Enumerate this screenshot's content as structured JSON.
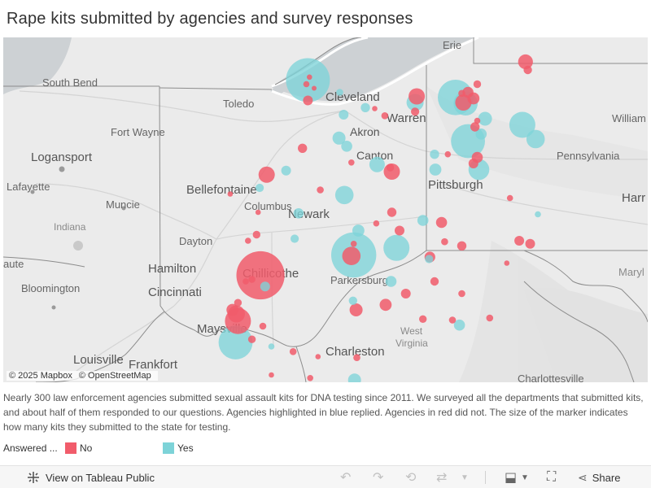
{
  "title": "Rape kits submitted by agencies and survey responses",
  "map": {
    "labels": {
      "erie": "Erie",
      "south_bend": "South Bend",
      "toledo": "Toledo",
      "cleveland": "Cleveland",
      "akron": "Akron",
      "canton": "Canton",
      "warren": "Warren",
      "williamsport": "William",
      "fort_wayne": "Fort Wayne",
      "logansport": "Logansport",
      "lafayette": "Lafayette",
      "muncie": "Muncie",
      "bellefontaine": "Bellefontaine",
      "columbus": "Columbus",
      "newark": "Newark",
      "pennsylvania": "Pennsylvania",
      "pittsburgh": "Pittsburgh",
      "harrisburg": "Harr",
      "indiana": "Indiana",
      "dayton": "Dayton",
      "kokomo": "aute",
      "hamilton": "Hamilton",
      "chillicothe": "Chillicothe",
      "parkersburg": "Parkersburg",
      "bloomington": "Bloomington",
      "cincinnati": "Cincinnati",
      "maryland": "Maryl",
      "maysville": "Maysville",
      "west_virginia_1": "West",
      "west_virginia_2": "Virginia",
      "louisville": "Louisville",
      "frankfort": "Frankfort",
      "charleston": "Charleston",
      "charlottesville": "Charlottesville"
    },
    "attribution": {
      "mapbox": "© 2025 Mapbox",
      "osm": "© OpenStreetMap"
    },
    "markers": [
      {
        "answered": "Yes",
        "lat": 41.68,
        "lon": -83.58,
        "kits": 400
      },
      {
        "answered": "No",
        "lat": 41.71,
        "lon": -83.56,
        "kits": 6
      },
      {
        "answered": "No",
        "lat": 41.64,
        "lon": -83.6,
        "kits": 8
      },
      {
        "answered": "No",
        "lat": 41.6,
        "lon": -83.5,
        "kits": 5
      },
      {
        "answered": "Yes",
        "lat": 41.56,
        "lon": -83.17,
        "kits": 10
      },
      {
        "answered": "No",
        "lat": 41.48,
        "lon": -83.58,
        "kits": 20
      },
      {
        "answered": "Yes",
        "lat": 41.41,
        "lon": -82.84,
        "kits": 18
      },
      {
        "answered": "No",
        "lat": 41.33,
        "lon": -82.59,
        "kits": 10
      },
      {
        "answered": "Yes",
        "lat": 41.46,
        "lon": -82.2,
        "kits": 60
      },
      {
        "answered": "No",
        "lat": 41.52,
        "lon": -82.18,
        "kits": 55
      },
      {
        "answered": "No",
        "lat": 41.37,
        "lon": -82.2,
        "kits": 14
      },
      {
        "answered": "Yes",
        "lat": 41.51,
        "lon": -81.68,
        "kits": 260
      },
      {
        "answered": "Yes",
        "lat": 41.45,
        "lon": -81.55,
        "kits": 120
      },
      {
        "answered": "No",
        "lat": 41.46,
        "lon": -81.58,
        "kits": 55
      },
      {
        "answered": "No",
        "lat": 41.56,
        "lon": -81.52,
        "kits": 25
      },
      {
        "answered": "No",
        "lat": 41.64,
        "lon": -81.4,
        "kits": 12
      },
      {
        "answered": "No",
        "lat": 41.5,
        "lon": -81.45,
        "kits": 30
      },
      {
        "answered": "No",
        "lat": 41.55,
        "lon": -81.6,
        "kits": 10
      },
      {
        "answered": "No",
        "lat": 41.86,
        "lon": -80.78,
        "kits": 45
      },
      {
        "answered": "No",
        "lat": 41.78,
        "lon": -80.75,
        "kits": 15
      },
      {
        "answered": "Yes",
        "lat": 41.24,
        "lon": -80.82,
        "kits": 140
      },
      {
        "answered": "Yes",
        "lat": 41.1,
        "lon": -80.65,
        "kits": 70
      },
      {
        "answered": "No",
        "lat": 41.28,
        "lon": -81.4,
        "kits": 8
      },
      {
        "answered": "Yes",
        "lat": 41.08,
        "lon": -81.52,
        "kits": 240
      },
      {
        "answered": "Yes",
        "lat": 41.3,
        "lon": -81.3,
        "kits": 40
      },
      {
        "answered": "Yes",
        "lat": 41.15,
        "lon": -81.35,
        "kits": 25
      },
      {
        "answered": "No",
        "lat": 41.22,
        "lon": -81.43,
        "kits": 18
      },
      {
        "answered": "Yes",
        "lat": 40.8,
        "lon": -81.38,
        "kits": 90
      },
      {
        "answered": "No",
        "lat": 40.86,
        "lon": -81.45,
        "kits": 20
      },
      {
        "answered": "No",
        "lat": 40.92,
        "lon": -81.4,
        "kits": 25
      },
      {
        "answered": "Yes",
        "lat": 40.95,
        "lon": -81.95,
        "kits": 18
      },
      {
        "answered": "Yes",
        "lat": 40.8,
        "lon": -81.94,
        "kits": 30
      },
      {
        "answered": "No",
        "lat": 40.95,
        "lon": -81.78,
        "kits": 8
      },
      {
        "answered": "No",
        "lat": 41.4,
        "lon": -82.72,
        "kits": 6
      },
      {
        "answered": "Yes",
        "lat": 41.34,
        "lon": -83.12,
        "kits": 20
      },
      {
        "answered": "No",
        "lat": 41.01,
        "lon": -83.65,
        "kits": 18
      },
      {
        "answered": "Yes",
        "lat": 41.11,
        "lon": -83.18,
        "kits": 35
      },
      {
        "answered": "Yes",
        "lat": 41.03,
        "lon": -83.08,
        "kits": 25
      },
      {
        "answered": "No",
        "lat": 40.87,
        "lon": -83.02,
        "kits": 8
      },
      {
        "answered": "No",
        "lat": 40.82,
        "lon": -82.52,
        "kits": 12
      },
      {
        "answered": "Yes",
        "lat": 40.85,
        "lon": -82.69,
        "kits": 50
      },
      {
        "answered": "No",
        "lat": 40.78,
        "lon": -82.5,
        "kits": 55
      },
      {
        "answered": "No",
        "lat": 40.75,
        "lon": -84.11,
        "kits": 55
      },
      {
        "answered": "Yes",
        "lat": 40.79,
        "lon": -83.86,
        "kits": 20
      },
      {
        "answered": "No",
        "lat": 40.6,
        "lon": -83.42,
        "kits": 10
      },
      {
        "answered": "Yes",
        "lat": 40.55,
        "lon": -83.11,
        "kits": 70
      },
      {
        "answered": "No",
        "lat": 40.38,
        "lon": -82.5,
        "kits": 18
      },
      {
        "answered": "Yes",
        "lat": 40.3,
        "lon": -82.1,
        "kits": 25
      },
      {
        "answered": "Yes",
        "lat": 40.37,
        "lon": -83.7,
        "kits": 22
      },
      {
        "answered": "No",
        "lat": 40.27,
        "lon": -82.7,
        "kits": 8
      },
      {
        "answered": "No",
        "lat": 40.28,
        "lon": -81.86,
        "kits": 25
      },
      {
        "answered": "No",
        "lat": 40.2,
        "lon": -82.4,
        "kits": 20
      },
      {
        "answered": "Yes",
        "lat": 40.2,
        "lon": -82.93,
        "kits": 30
      },
      {
        "answered": "No",
        "lat": 40.05,
        "lon": -81.6,
        "kits": 18
      },
      {
        "answered": "No",
        "lat": 40.09,
        "lon": -81.82,
        "kits": 10
      },
      {
        "answered": "No",
        "lat": 40.07,
        "lon": -82.99,
        "kits": 8
      },
      {
        "answered": "Yes",
        "lat": 39.96,
        "lon": -82.99,
        "kits": 420
      },
      {
        "answered": "No",
        "lat": 39.95,
        "lon": -83.02,
        "kits": 70
      },
      {
        "answered": "Yes",
        "lat": 40.03,
        "lon": -82.44,
        "kits": 140
      },
      {
        "answered": "No",
        "lat": 39.94,
        "lon": -82.01,
        "kits": 24
      },
      {
        "answered": "Yes",
        "lat": 39.92,
        "lon": -82.02,
        "kits": 14
      },
      {
        "answered": "No",
        "lat": 39.76,
        "lon": -84.19,
        "kits": 480
      },
      {
        "answered": "Yes",
        "lat": 39.65,
        "lon": -84.13,
        "kits": 20
      },
      {
        "answered": "No",
        "lat": 39.72,
        "lon": -84.3,
        "kits": 10
      },
      {
        "answered": "No",
        "lat": 39.7,
        "lon": -84.38,
        "kits": 8
      },
      {
        "answered": "Yes",
        "lat": 39.7,
        "lon": -82.51,
        "kits": 25
      },
      {
        "answered": "No",
        "lat": 39.58,
        "lon": -82.32,
        "kits": 20
      },
      {
        "answered": "No",
        "lat": 39.7,
        "lon": -81.95,
        "kits": 15
      },
      {
        "answered": "No",
        "lat": 39.42,
        "lon": -82.96,
        "kits": 35
      },
      {
        "answered": "Yes",
        "lat": 39.51,
        "lon": -83.0,
        "kits": 15
      },
      {
        "answered": "No",
        "lat": 39.47,
        "lon": -82.58,
        "kits": 30
      },
      {
        "answered": "No",
        "lat": 39.33,
        "lon": -82.1,
        "kits": 12
      },
      {
        "answered": "Yes",
        "lat": 39.27,
        "lon": -81.63,
        "kits": 25
      },
      {
        "answered": "No",
        "lat": 39.32,
        "lon": -81.72,
        "kits": 10
      },
      {
        "answered": "No",
        "lat": 39.34,
        "lon": -81.24,
        "kits": 10
      },
      {
        "answered": "No",
        "lat": 39.42,
        "lon": -84.55,
        "kits": 30
      },
      {
        "answered": "No",
        "lat": 39.49,
        "lon": -84.48,
        "kits": 12
      },
      {
        "answered": "No",
        "lat": 39.31,
        "lon": -84.48,
        "kits": 140
      },
      {
        "answered": "No",
        "lat": 39.38,
        "lon": -84.5,
        "kits": 60
      },
      {
        "answered": "Yes",
        "lat": 39.1,
        "lon": -84.51,
        "kits": 240
      },
      {
        "answered": "No",
        "lat": 39.13,
        "lon": -84.3,
        "kits": 12
      },
      {
        "answered": "No",
        "lat": 39.26,
        "lon": -84.16,
        "kits": 10
      },
      {
        "answered": "Yes",
        "lat": 39.06,
        "lon": -84.05,
        "kits": 8
      },
      {
        "answered": "No",
        "lat": 39.01,
        "lon": -83.77,
        "kits": 10
      },
      {
        "answered": "No",
        "lat": 38.96,
        "lon": -83.45,
        "kits": 6
      },
      {
        "answered": "No",
        "lat": 38.75,
        "lon": -83.55,
        "kits": 8
      },
      {
        "answered": "Yes",
        "lat": 38.73,
        "lon": -82.98,
        "kits": 35
      },
      {
        "answered": "No",
        "lat": 38.57,
        "lon": -82.86,
        "kits": 25
      },
      {
        "answered": "No",
        "lat": 38.95,
        "lon": -82.95,
        "kits": 10
      },
      {
        "answered": "No",
        "lat": 38.78,
        "lon": -84.05,
        "kits": 6
      },
      {
        "answered": "No",
        "lat": 40.56,
        "lon": -84.58,
        "kits": 6
      },
      {
        "answered": "Yes",
        "lat": 40.62,
        "lon": -84.2,
        "kits": 14
      },
      {
        "answered": "No",
        "lat": 40.38,
        "lon": -84.22,
        "kits": 6
      },
      {
        "answered": "No",
        "lat": 40.16,
        "lon": -84.24,
        "kits": 12
      },
      {
        "answered": "Yes",
        "lat": 40.12,
        "lon": -83.75,
        "kits": 14
      },
      {
        "answered": "No",
        "lat": 40.1,
        "lon": -84.35,
        "kits": 8
      },
      {
        "answered": "No",
        "lat": 40.52,
        "lon": -80.98,
        "kits": 8
      },
      {
        "answered": "Yes",
        "lat": 40.36,
        "lon": -80.62,
        "kits": 8
      },
      {
        "answered": "No",
        "lat": 40.07,
        "lon": -80.72,
        "kits": 20
      },
      {
        "answered": "No",
        "lat": 40.1,
        "lon": -80.86,
        "kits": 20
      },
      {
        "answered": "No",
        "lat": 39.88,
        "lon": -81.02,
        "kits": 6
      },
      {
        "answered": "No",
        "lat": 39.58,
        "lon": -81.6,
        "kits": 10
      }
    ]
  },
  "description": "Nearly 300 law enforcement agencies submitted sexual assault kits for DNA testing since 2011. We surveyed all the departments that submitted kits, and about half of them responded to our questions. Agencies highlighted in blue replied. Agencies in red did not. The size of the marker indicates how many kits they submitted to the state for testing.",
  "legend": {
    "title": "Answered ...",
    "items": [
      {
        "label": "No",
        "color": "#f15c6b"
      },
      {
        "label": "Yes",
        "color": "#7dd3d8"
      }
    ]
  },
  "toolbar": {
    "view_label": "View on Tableau Public",
    "share_label": "Share"
  }
}
